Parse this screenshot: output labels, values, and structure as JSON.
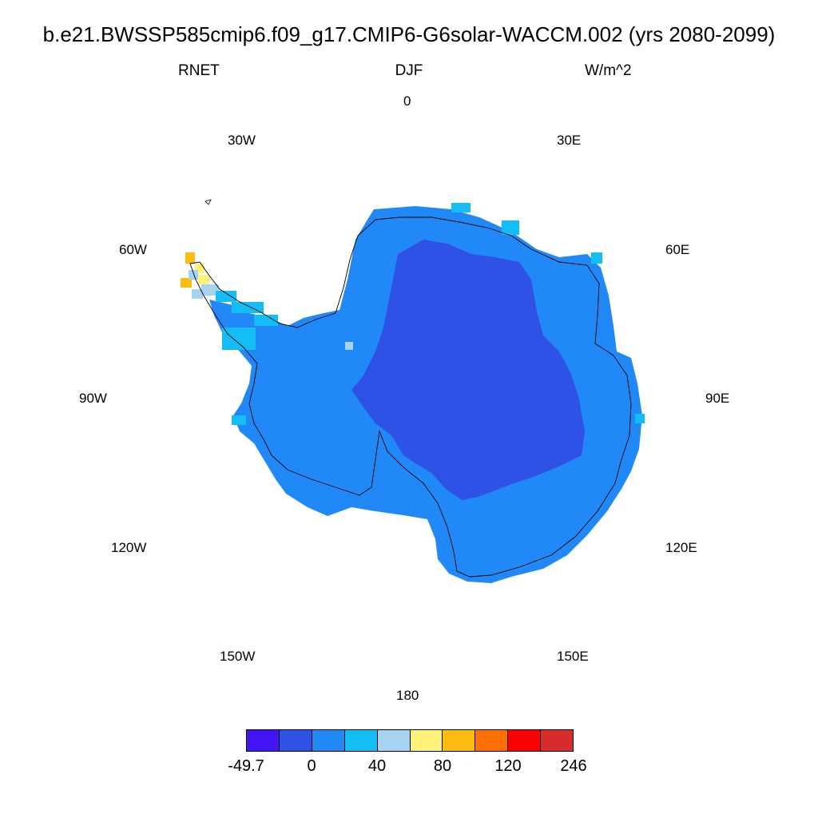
{
  "header": {
    "title": "b.e21.BWSSP585cmip6.f09_g17.CMIP6-G6solar-WACCM.002 (yrs 2080-2099)",
    "variable": "RNET",
    "season": "DJF",
    "units": "W/m^2"
  },
  "longitude_labels": [
    {
      "id": "0",
      "text": "0"
    },
    {
      "id": "30e",
      "text": "30E"
    },
    {
      "id": "60e",
      "text": "60E"
    },
    {
      "id": "90e",
      "text": "90E"
    },
    {
      "id": "120e",
      "text": "120E"
    },
    {
      "id": "150e",
      "text": "150E"
    },
    {
      "id": "180",
      "text": "180"
    },
    {
      "id": "150w",
      "text": "150W"
    },
    {
      "id": "120w",
      "text": "120W"
    },
    {
      "id": "90w",
      "text": "90W"
    },
    {
      "id": "60w",
      "text": "60W"
    },
    {
      "id": "30w",
      "text": "30W"
    }
  ],
  "colorbar": {
    "colors": [
      "#4414f5",
      "#2e52e6",
      "#2189f7",
      "#15bdf7",
      "#a6d4f0",
      "#fff27a",
      "#fdbd10",
      "#ff6e00",
      "#ff0000",
      "#d72c2c"
    ],
    "labels": [
      "-49.7",
      "0",
      "40",
      "80",
      "120",
      "246"
    ]
  }
}
